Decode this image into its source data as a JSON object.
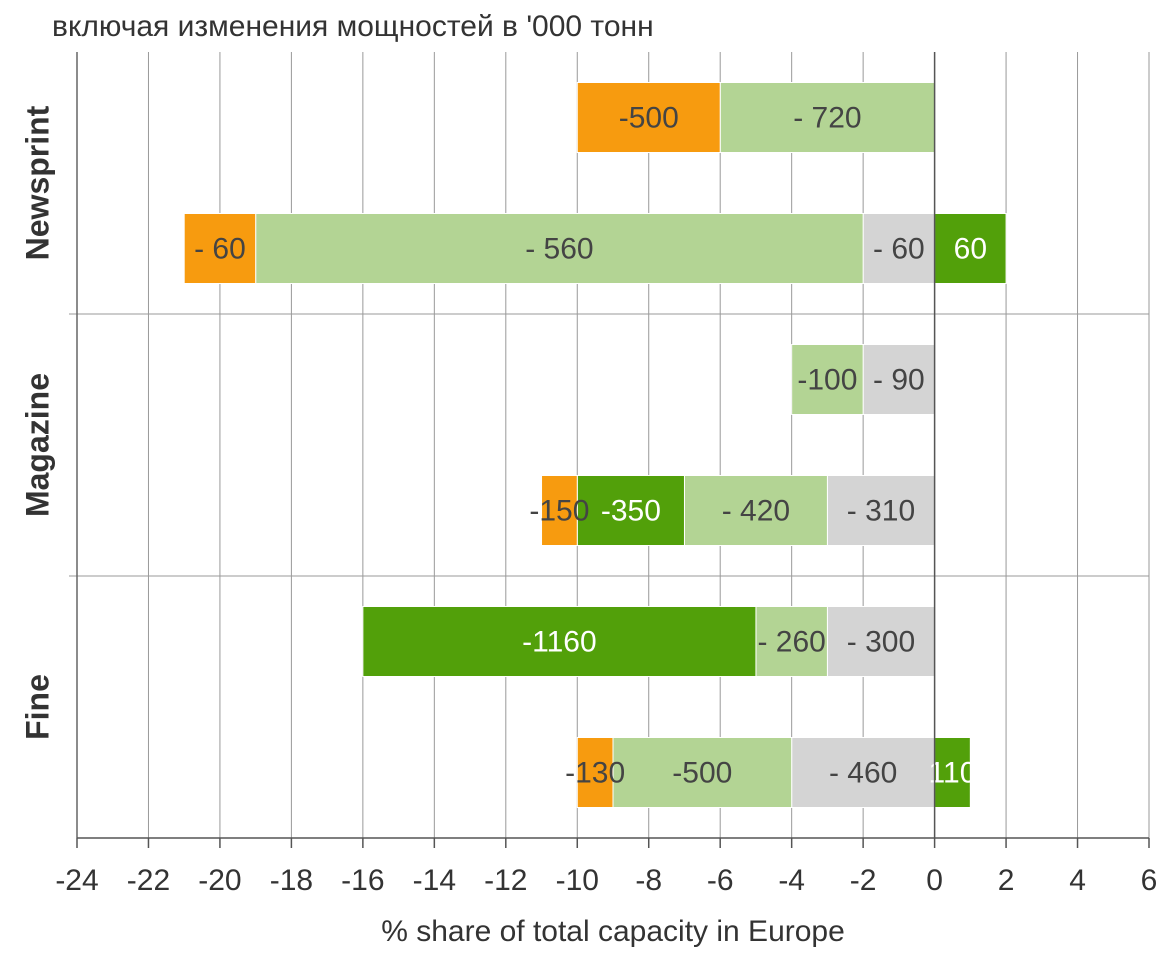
{
  "chart_data": {
    "type": "stacked_barh",
    "title": "включая изменения мощностей в '000 тонн",
    "xlabel": "% share of total capacity in Europe",
    "categories": [
      null,
      null,
      null,
      null,
      null,
      null
    ],
    "groups": [
      "Newsprint",
      "Magazine",
      "Fine"
    ],
    "xlim": [
      -24,
      6
    ],
    "xticks": [
      -24,
      -22,
      -20,
      -18,
      -16,
      -14,
      -12,
      -10,
      -8,
      -6,
      -4,
      -2,
      0,
      2,
      4,
      6
    ],
    "grid": true,
    "series": [
      {
        "color": "#d4d4d4",
        "label_color": "#444444",
        "values": [
          null,
          -2,
          -2,
          -3,
          -3,
          -4
        ],
        "labels": [
          null,
          "- 60",
          "- 90",
          "- 310",
          "- 300",
          "- 460"
        ]
      },
      {
        "color": "#b3d494",
        "label_color": "#444444",
        "values": [
          -6,
          -17,
          -2,
          -4,
          -2,
          -5
        ],
        "labels": [
          "- 720",
          "- 560",
          "-100",
          "- 420",
          "- 260",
          "-500"
        ]
      },
      {
        "color": "#52a00a",
        "label_color": "#ffffff",
        "values": [
          null,
          2,
          null,
          -3,
          -11,
          1
        ],
        "labels": [
          null,
          "60",
          null,
          "-350",
          "-1160",
          "110"
        ]
      },
      {
        "color": "#f79b0f",
        "label_color": "#444444",
        "values": [
          -4,
          -2,
          null,
          -1,
          null,
          -1
        ],
        "labels": [
          "-500",
          "- 60",
          null,
          "-150",
          null,
          "-130"
        ]
      }
    ]
  }
}
